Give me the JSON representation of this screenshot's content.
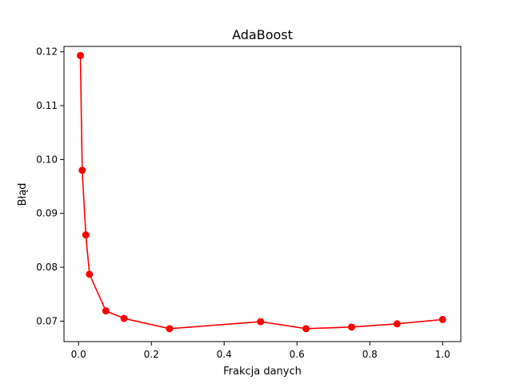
{
  "chart_data": {
    "type": "line",
    "title": "AdaBoost",
    "xlabel": "Frakcja danych",
    "ylabel": "Błąd",
    "xlim": [
      -0.04,
      1.05
    ],
    "ylim": [
      0.0662,
      0.121
    ],
    "xticks": [
      {
        "value": 0.0,
        "label": "0.0"
      },
      {
        "value": 0.2,
        "label": "0.2"
      },
      {
        "value": 0.4,
        "label": "0.4"
      },
      {
        "value": 0.6,
        "label": "0.6"
      },
      {
        "value": 0.8,
        "label": "0.8"
      },
      {
        "value": 1.0,
        "label": "1.0"
      }
    ],
    "yticks": [
      {
        "value": 0.07,
        "label": "0.07"
      },
      {
        "value": 0.08,
        "label": "0.08"
      },
      {
        "value": 0.09,
        "label": "0.09"
      },
      {
        "value": 0.1,
        "label": "0.10"
      },
      {
        "value": 0.11,
        "label": "0.11"
      },
      {
        "value": 0.12,
        "label": "0.12"
      }
    ],
    "grid": false,
    "series": [
      {
        "color": "#ff0000",
        "marker": "circle",
        "x": [
          0.005,
          0.01,
          0.02,
          0.03,
          0.075,
          0.125,
          0.25,
          0.5,
          0.625,
          0.75,
          0.875,
          1.0
        ],
        "y": [
          0.1193,
          0.098,
          0.086,
          0.0787,
          0.0719,
          0.0705,
          0.0686,
          0.0699,
          0.0686,
          0.0689,
          0.0695,
          0.0703
        ]
      }
    ]
  }
}
